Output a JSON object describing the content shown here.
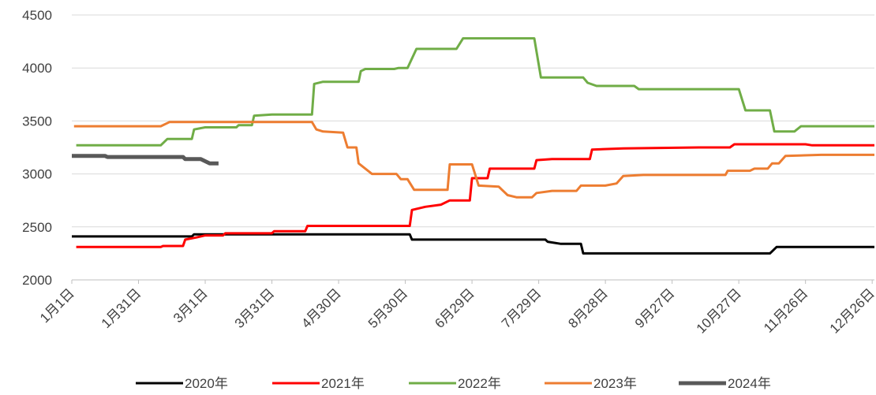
{
  "chart_data": {
    "type": "line",
    "xlim": [
      0,
      361
    ],
    "xticks": [
      {
        "value": 0,
        "label": "1月1日"
      },
      {
        "value": 30,
        "label": "1月31日"
      },
      {
        "value": 60,
        "label": "3月1日"
      },
      {
        "value": 90,
        "label": "3月31日"
      },
      {
        "value": 120,
        "label": "4月30日"
      },
      {
        "value": 150,
        "label": "5月30日"
      },
      {
        "value": 180,
        "label": "6月29日"
      },
      {
        "value": 210,
        "label": "7月29日"
      },
      {
        "value": 240,
        "label": "8月28日"
      },
      {
        "value": 270,
        "label": "9月27日"
      },
      {
        "value": 300,
        "label": "10月27日"
      },
      {
        "value": 330,
        "label": "11月26日"
      },
      {
        "value": 360,
        "label": "12月26日"
      }
    ],
    "ylim": [
      2000,
      4500
    ],
    "yticks": [
      2000,
      2500,
      3000,
      3500,
      4000,
      4500
    ],
    "grid": true,
    "legend": "bottom",
    "series": [
      {
        "name": "2020年",
        "color": "#000000",
        "x": [
          0,
          54,
          55,
          152,
          153,
          213,
          214,
          220,
          229,
          230,
          314,
          317,
          361
        ],
        "values": [
          2410,
          2410,
          2430,
          2430,
          2380,
          2380,
          2360,
          2340,
          2340,
          2250,
          2250,
          2310,
          2310
        ]
      },
      {
        "name": "2021年",
        "color": "#ff0000",
        "x": [
          2,
          40,
          41,
          50,
          51,
          56,
          60,
          68,
          69,
          90,
          91,
          105,
          106,
          152,
          153,
          159,
          166,
          170,
          179,
          180,
          187,
          188,
          208,
          209,
          216,
          233,
          234,
          248,
          282,
          296,
          298,
          330,
          333,
          361
        ],
        "values": [
          2310,
          2310,
          2320,
          2320,
          2380,
          2400,
          2420,
          2420,
          2440,
          2440,
          2460,
          2460,
          2510,
          2510,
          2660,
          2690,
          2710,
          2750,
          2750,
          2960,
          2960,
          3050,
          3050,
          3130,
          3140,
          3140,
          3230,
          3240,
          3250,
          3250,
          3280,
          3280,
          3270,
          3270
        ]
      },
      {
        "name": "2022年",
        "color": "#70ad47",
        "x": [
          2,
          40,
          43,
          54,
          55,
          60,
          74,
          75,
          81,
          82,
          90,
          108,
          109,
          113,
          129,
          130,
          132,
          145,
          147,
          151,
          155,
          173,
          176,
          208,
          211,
          230,
          232,
          236,
          253,
          255,
          300,
          303,
          314,
          316,
          325,
          328,
          361
        ],
        "values": [
          3270,
          3270,
          3330,
          3330,
          3420,
          3440,
          3440,
          3460,
          3460,
          3550,
          3560,
          3560,
          3850,
          3870,
          3870,
          3970,
          3990,
          3990,
          4000,
          4000,
          4180,
          4180,
          4280,
          4280,
          3910,
          3910,
          3860,
          3830,
          3830,
          3800,
          3800,
          3600,
          3600,
          3400,
          3400,
          3450,
          3450
        ]
      },
      {
        "name": "2023年",
        "color": "#ed7d31",
        "x": [
          1,
          40,
          44,
          108,
          110,
          113,
          122,
          124,
          128,
          129,
          135,
          146,
          148,
          151,
          154,
          169,
          170,
          180,
          183,
          192,
          196,
          200,
          207,
          209,
          216,
          227,
          229,
          240,
          245,
          248,
          257,
          285,
          294,
          295,
          305,
          307,
          313,
          315,
          318,
          321,
          337,
          361
        ],
        "values": [
          3450,
          3450,
          3490,
          3490,
          3420,
          3400,
          3390,
          3250,
          3250,
          3100,
          3000,
          3000,
          2950,
          2950,
          2850,
          2850,
          3090,
          3090,
          2890,
          2880,
          2800,
          2780,
          2780,
          2820,
          2840,
          2840,
          2890,
          2890,
          2910,
          2980,
          2990,
          2990,
          2990,
          3030,
          3030,
          3050,
          3050,
          3100,
          3100,
          3170,
          3180,
          3180
        ]
      },
      {
        "name": "2024年",
        "color": "#595959",
        "x": [
          0,
          15,
          16,
          50,
          51,
          58,
          62,
          66
        ],
        "values": [
          3170,
          3170,
          3160,
          3160,
          3140,
          3140,
          3100,
          3100
        ]
      }
    ]
  }
}
